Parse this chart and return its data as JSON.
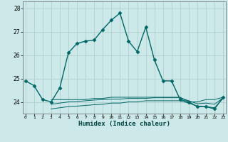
{
  "xlabel": "Humidex (Indice chaleur)",
  "background_color": "#cce8e8",
  "grid_color": "#b0d0d0",
  "line_color": "#006666",
  "x": [
    0,
    1,
    2,
    3,
    4,
    5,
    6,
    7,
    8,
    9,
    10,
    11,
    12,
    13,
    14,
    15,
    16,
    17,
    18,
    19,
    20,
    21,
    22,
    23
  ],
  "series": [
    {
      "y": [
        24.9,
        24.7,
        24.1,
        24.0,
        24.6,
        26.1,
        26.5,
        26.6,
        26.65,
        27.1,
        27.5,
        27.8,
        26.6,
        26.15,
        27.2,
        25.8,
        24.9,
        24.9,
        24.1,
        24.0,
        23.8,
        23.8,
        23.7,
        24.2
      ],
      "marker": "D",
      "markersize": 2.5,
      "linewidth": 1.0
    },
    {
      "y": [
        null,
        null,
        null,
        24.1,
        24.1,
        24.1,
        24.1,
        24.1,
        24.15,
        24.15,
        24.2,
        24.2,
        24.2,
        24.2,
        24.2,
        24.2,
        24.2,
        24.2,
        24.2,
        24.0,
        24.0,
        24.1,
        24.1,
        24.2
      ],
      "marker": null,
      "markersize": 0,
      "linewidth": 0.7
    },
    {
      "y": [
        null,
        null,
        null,
        23.7,
        23.75,
        23.8,
        23.82,
        23.85,
        23.88,
        23.9,
        23.95,
        23.95,
        24.0,
        24.0,
        24.05,
        24.05,
        24.05,
        24.05,
        24.05,
        23.95,
        23.82,
        23.8,
        23.75,
        24.15
      ],
      "marker": null,
      "markersize": 0,
      "linewidth": 0.7
    },
    {
      "y": [
        null,
        null,
        null,
        23.9,
        23.95,
        24.0,
        24.02,
        24.05,
        24.08,
        24.1,
        24.12,
        24.12,
        24.15,
        24.15,
        24.15,
        24.18,
        24.18,
        24.18,
        24.18,
        24.05,
        23.92,
        23.95,
        23.9,
        24.18
      ],
      "marker": null,
      "markersize": 0,
      "linewidth": 0.7
    }
  ],
  "ylim": [
    23.5,
    28.3
  ],
  "yticks": [
    24,
    25,
    26,
    27,
    28
  ],
  "xlim": [
    -0.3,
    23.3
  ]
}
